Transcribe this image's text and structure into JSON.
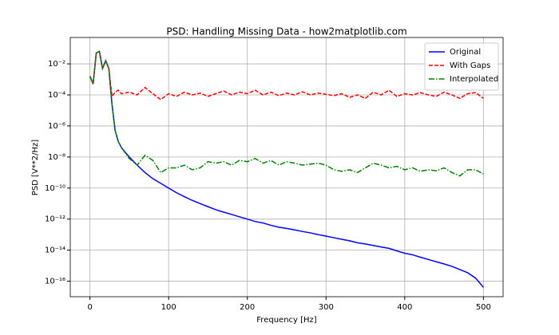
{
  "chart_data": {
    "type": "line",
    "title": "PSD: Handling Missing Data - how2matplotlib.com",
    "xlabel": "Frequency [Hz]",
    "ylabel": "PSD [V**2/Hz]",
    "yscale": "log",
    "grid": true,
    "legend": "upper right",
    "xlim": [
      -25,
      525
    ],
    "xticks": [
      0,
      100,
      200,
      300,
      400,
      500
    ],
    "ylim": [
      1e-17,
      0.5
    ],
    "yticks": [
      {
        "value": 1e-16,
        "label": "10⁻¹⁶"
      },
      {
        "value": 1e-14,
        "label": "10⁻¹⁴"
      },
      {
        "value": 1e-12,
        "label": "10⁻¹²"
      },
      {
        "value": 1e-10,
        "label": "10⁻¹⁰"
      },
      {
        "value": 1e-08,
        "label": "10⁻⁸"
      },
      {
        "value": 1e-06,
        "label": "10⁻⁶"
      },
      {
        "value": 0.0001,
        "label": "10⁻⁴"
      },
      {
        "value": 0.01,
        "label": "10⁻²"
      }
    ],
    "x": [
      0,
      4,
      8,
      12,
      16,
      20,
      24,
      28,
      32,
      36,
      40,
      50,
      60,
      70,
      80,
      90,
      100,
      110,
      120,
      130,
      140,
      150,
      160,
      170,
      180,
      190,
      200,
      210,
      220,
      230,
      240,
      250,
      260,
      270,
      280,
      290,
      300,
      310,
      320,
      330,
      340,
      350,
      360,
      370,
      380,
      390,
      400,
      410,
      420,
      430,
      440,
      450,
      460,
      470,
      480,
      490,
      500
    ],
    "series": [
      {
        "name": "Original",
        "color": "#0000ff",
        "linestyle": "solid",
        "values": [
          0.0016,
          0.0005,
          0.05,
          0.063,
          0.005,
          0.016,
          0.005,
          2.5e-05,
          5e-07,
          1e-07,
          4e-08,
          1e-08,
          3e-09,
          1e-09,
          4e-10,
          2e-10,
          1e-10,
          5e-11,
          2.8e-11,
          1.6e-11,
          1e-11,
          6.3e-12,
          4e-12,
          2.8e-12,
          2e-12,
          1.4e-12,
          1e-12,
          7e-13,
          5.6e-13,
          4e-13,
          3e-13,
          2.5e-13,
          2e-13,
          1.6e-13,
          1.3e-13,
          1e-13,
          8e-14,
          6.3e-14,
          5e-14,
          4e-14,
          3e-14,
          2.5e-14,
          2e-14,
          1.6e-14,
          1.3e-14,
          9e-15,
          6.3e-15,
          5e-15,
          3.5e-15,
          2.5e-15,
          1.8e-15,
          1.3e-15,
          9e-16,
          5.6e-16,
          3.5e-16,
          1.6e-16,
          4e-17
        ]
      },
      {
        "name": "With Gaps",
        "color": "#ff0000",
        "linestyle": "dashed",
        "values": [
          0.0016,
          0.0005,
          0.05,
          0.063,
          0.005,
          0.016,
          0.005,
          8e-05,
          0.00015,
          0.0002,
          0.00012,
          0.00015,
          0.0001,
          0.0003,
          0.00012,
          5e-05,
          0.00012,
          8e-05,
          0.00015,
          0.0001,
          0.00013,
          8e-05,
          0.00012,
          0.00018,
          0.0001,
          0.00015,
          0.00012,
          0.0002,
          0.0001,
          0.00015,
          9e-05,
          0.00013,
          0.0001,
          0.00016,
          0.0001,
          0.00013,
          0.00011,
          9e-05,
          0.00012,
          7e-05,
          0.0001,
          6e-05,
          0.00015,
          0.0001,
          0.0002,
          8e-05,
          0.00012,
          0.0001,
          0.00014,
          0.0001,
          8e-05,
          0.00015,
          0.0001,
          6e-05,
          0.00012,
          0.00014,
          6e-05
        ]
      },
      {
        "name": "Interpolated",
        "color": "#008000",
        "linestyle": "dashdot",
        "values": [
          0.0016,
          0.0005,
          0.05,
          0.063,
          0.005,
          0.016,
          0.005,
          2.5e-05,
          5e-07,
          1e-07,
          4e-08,
          8e-09,
          3e-09,
          1.3e-08,
          6e-09,
          1e-09,
          2e-09,
          2e-09,
          3e-09,
          1.5e-09,
          2e-09,
          5e-09,
          4e-09,
          5e-09,
          3e-09,
          6e-09,
          5e-09,
          8e-09,
          4e-09,
          6e-09,
          3e-09,
          5e-09,
          4e-09,
          3e-09,
          3.5e-09,
          4e-09,
          3e-09,
          1.5e-09,
          1.2e-09,
          1.5e-09,
          1e-09,
          2e-09,
          4e-09,
          3e-09,
          2e-09,
          2.5e-09,
          1.5e-09,
          2e-09,
          1.2e-09,
          1.5e-09,
          1.3e-09,
          2e-09,
          1e-09,
          6e-10,
          1.5e-09,
          1.5e-09,
          8e-10
        ]
      }
    ]
  }
}
